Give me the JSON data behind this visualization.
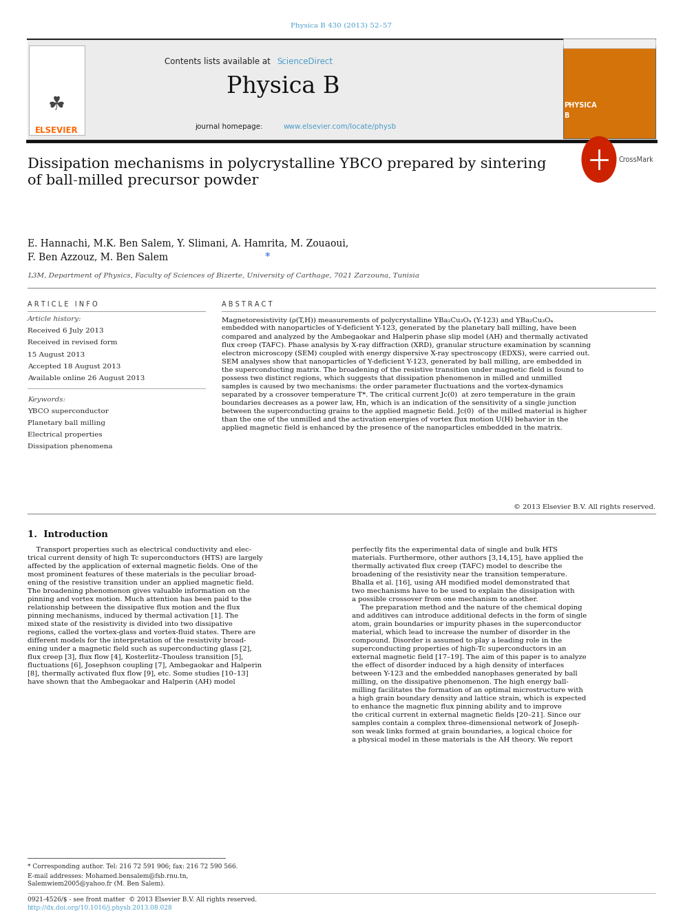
{
  "page_width": 9.92,
  "page_height": 13.23,
  "bg_color": "#ffffff",
  "journal_ref": "Physica B 430 (2013) 52–57",
  "journal_ref_color": "#4a9cc9",
  "header_text": "Contents lists available at ",
  "sciencedirect_text": "ScienceDirect",
  "sciencedirect_color": "#4a9cc9",
  "journal_name": "Physica B",
  "journal_homepage_text": "journal homepage: ",
  "journal_url": "www.elsevier.com/locate/physb",
  "journal_url_color": "#4a9cc9",
  "title": "Dissipation mechanisms in polycrystalline YBCO prepared by sintering\nof ball-milled precursor powder",
  "authors_line1": "E. Hannachi, M.K. Ben Salem, Y. Slimani, A. Hamrita, M. Zouaoui,",
  "authors_line2": "F. Ben Azzouz, M. Ben Salem",
  "affiliation": "L3M, Department of Physics, Faculty of Sciences of Bizerte, University of Carthage, 7021 Zarzouna, Tunisia",
  "article_info_label": "A R T I C L E   I N F O",
  "abstract_label": "A B S T R A C T",
  "article_history_label": "Article history:",
  "received1": "Received 6 July 2013",
  "received2": "Received in revised form",
  "received2b": "15 August 2013",
  "accepted": "Accepted 18 August 2013",
  "available": "Available online 26 August 2013",
  "keywords_label": "Keywords:",
  "keyword1": "YBCO superconductor",
  "keyword2": "Planetary ball milling",
  "keyword3": "Electrical properties",
  "keyword4": "Dissipation phenomena",
  "abstract_text": "Magnetoresistivity (ρ(T,H)) measurements of polycrystalline YBa₂Cu₃Oₐ (Y-123) and YBa₂Cu₃Oₐ\nembedded with nanoparticles of Y-deficient Y-123, generated by the planetary ball milling, have been\ncompared and analyzed by the Ambegaokar and Halperin phase slip model (AH) and thermally activated\nflux creep (TAFC). Phase analysis by X-ray diffraction (XRD), granular structure examination by scanning\nelectron microscopy (SEM) coupled with energy dispersive X-ray spectroscopy (EDXS), were carried out.\nSEM analyses show that nanoparticles of Y-deficient Y-123, generated by ball milling, are embedded in\nthe superconducting matrix. The broadening of the resistive transition under magnetic field is found to\npossess two distinct regions, which suggests that dissipation phenomenon in milled and unmilled\nsamples is caused by two mechanisms: the order parameter fluctuations and the vortex-dynamics\nseparated by a crossover temperature T*. The critical current Jc(0)  at zero temperature in the grain\nboundaries decreases as a power law, Hn, which is an indication of the sensitivity of a single junction\nbetween the superconducting grains to the applied magnetic field. Jc(0)  of the milled material is higher\nthan the one of the unmilled and the activation energies of vortex flux motion U(H) behavior in the\napplied magnetic field is enhanced by the presence of the nanoparticles embedded in the matrix.",
  "copyright_text": "© 2013 Elsevier B.V. All rights reserved.",
  "intro_title": "1.  Introduction",
  "intro_col1": "    Transport properties such as electrical conductivity and elec-\ntrical current density of high Tc superconductors (HTS) are largely\naffected by the application of external magnetic fields. One of the\nmost prominent features of these materials is the peculiar broad-\nening of the resistive transition under an applied magnetic field.\nThe broadening phenomenon gives valuable information on the\npinning and vortex motion. Much attention has been paid to the\nrelationship between the dissipative flux motion and the flux\npinning mechanisms, induced by thermal activation [1]. The\nmixed state of the resistivity is divided into two dissipative\nregions, called the vortex-glass and vortex-fluid states. There are\ndifferent models for the interpretation of the resistivity broad-\nening under a magnetic field such as superconducting glass [2],\nflux creep [3], flux flow [4], Kosterlitz–Thouless transition [5],\nfluctuations [6], Josephson coupling [7], Ambegaokar and Halperin\n[8], thermally activated flux flow [9], etc. Some studies [10–13]\nhave shown that the Ambegaokar and Halperin (AH) model",
  "intro_col2": "perfectly fits the experimental data of single and bulk HTS\nmaterials. Furthermore, other authors [3,14,15], have applied the\nthermally activated flux creep (TAFC) model to describe the\nbroadening of the resistivity near the transition temperature.\nBhalla et al. [16], using AH modified model demonstrated that\ntwo mechanisms have to be used to explain the dissipation with\na possible crossover from one mechanism to another.\n    The preparation method and the nature of the chemical doping\nand additives can introduce additional defects in the form of single\natom, grain boundaries or impurity phases in the superconductor\nmaterial, which lead to increase the number of disorder in the\ncompound. Disorder is assumed to play a leading role in the\nsuperconducting properties of high-Tc superconductors in an\nexternal magnetic field [17–19]. The aim of this paper is to analyze\nthe effect of disorder induced by a high density of interfaces\nbetween Y-123 and the embedded nanophases generated by ball\nmilling, on the dissipative phenomenon. The high energy ball-\nmilling facilitates the formation of an optimal microstructure with\na high grain boundary density and lattice strain, which is expected\nto enhance the magnetic flux pinning ability and to improve\nthe critical current in external magnetic fields [20–21]. Since our\nsamples contain a complex three-dimensional network of Joseph-\nson weak links formed at grain boundaries, a logical choice for\na physical model in these materials is the AH theory. We report",
  "footnote_line1": "* Corresponding author. Tel: 216 72 591 906; fax: 216 72 590 566.",
  "footnote_line2": "E-mail addresses: Mohamed.bensalem@fsb.rnu.tn,",
  "footnote_line3": "Salemwiem2005@yahoo.fr (M. Ben Salem).",
  "footer_line1": "0921-4526/$ - see front matter  © 2013 Elsevier B.V. All rights reserved.",
  "footer_line2": "http://dx.doi.org/10.1016/j.physb.2013.08.028",
  "footer_url_color": "#4a9cc9",
  "elsevier_color": "#ff6600"
}
